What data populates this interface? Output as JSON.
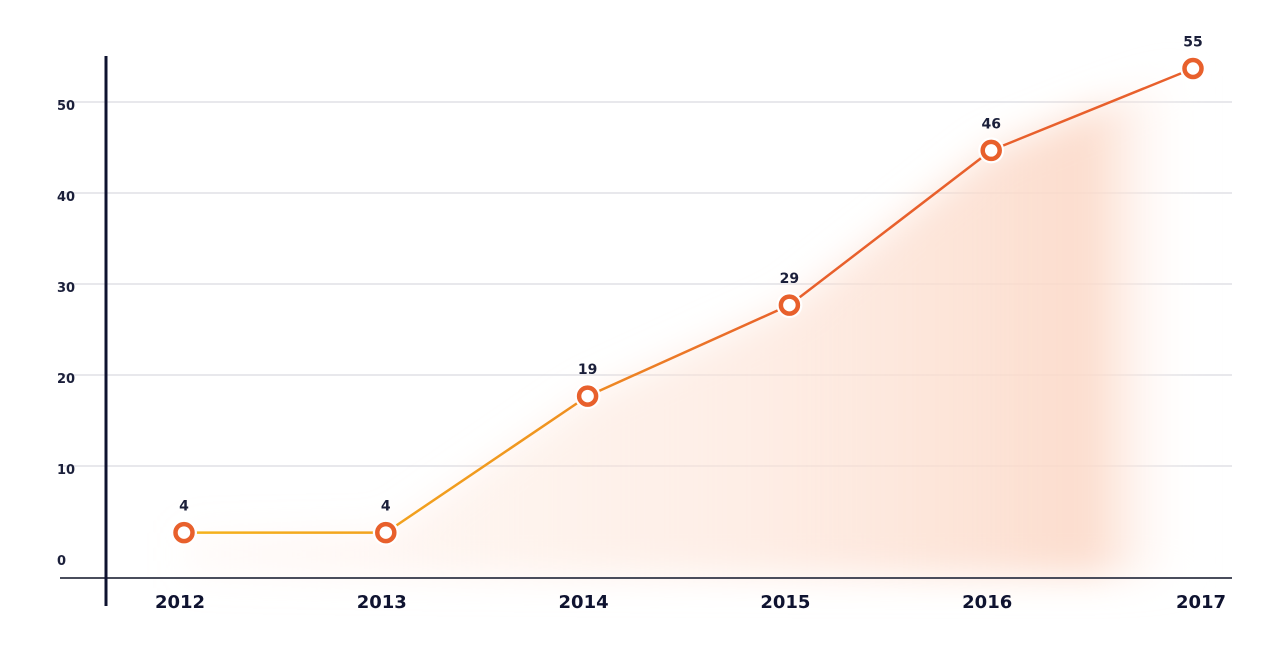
{
  "chart_data": {
    "type": "line",
    "title": "",
    "xlabel": "",
    "ylabel": "",
    "categories": [
      "2012",
      "2013",
      "2014",
      "2015",
      "2016",
      "2017"
    ],
    "series": [
      {
        "values": [
          4,
          4,
          19,
          29,
          46,
          55
        ]
      }
    ],
    "data_labels": [
      "4",
      "4",
      "19",
      "29",
      "46",
      "55"
    ],
    "yticks": [
      0,
      10,
      20,
      30,
      40,
      50
    ],
    "ytick_labels": [
      "0",
      "10",
      "20",
      "30",
      "40",
      "50"
    ],
    "ylim": [
      -1,
      59
    ],
    "grid": true,
    "legend": "none",
    "colors": {
      "line_start": "#f5b31c",
      "line_end": "#e8602c",
      "marker": "#e8602c",
      "area_fill": "#fde3d6",
      "gridline": "#e8e8ec",
      "axis": "#0f1330"
    }
  }
}
